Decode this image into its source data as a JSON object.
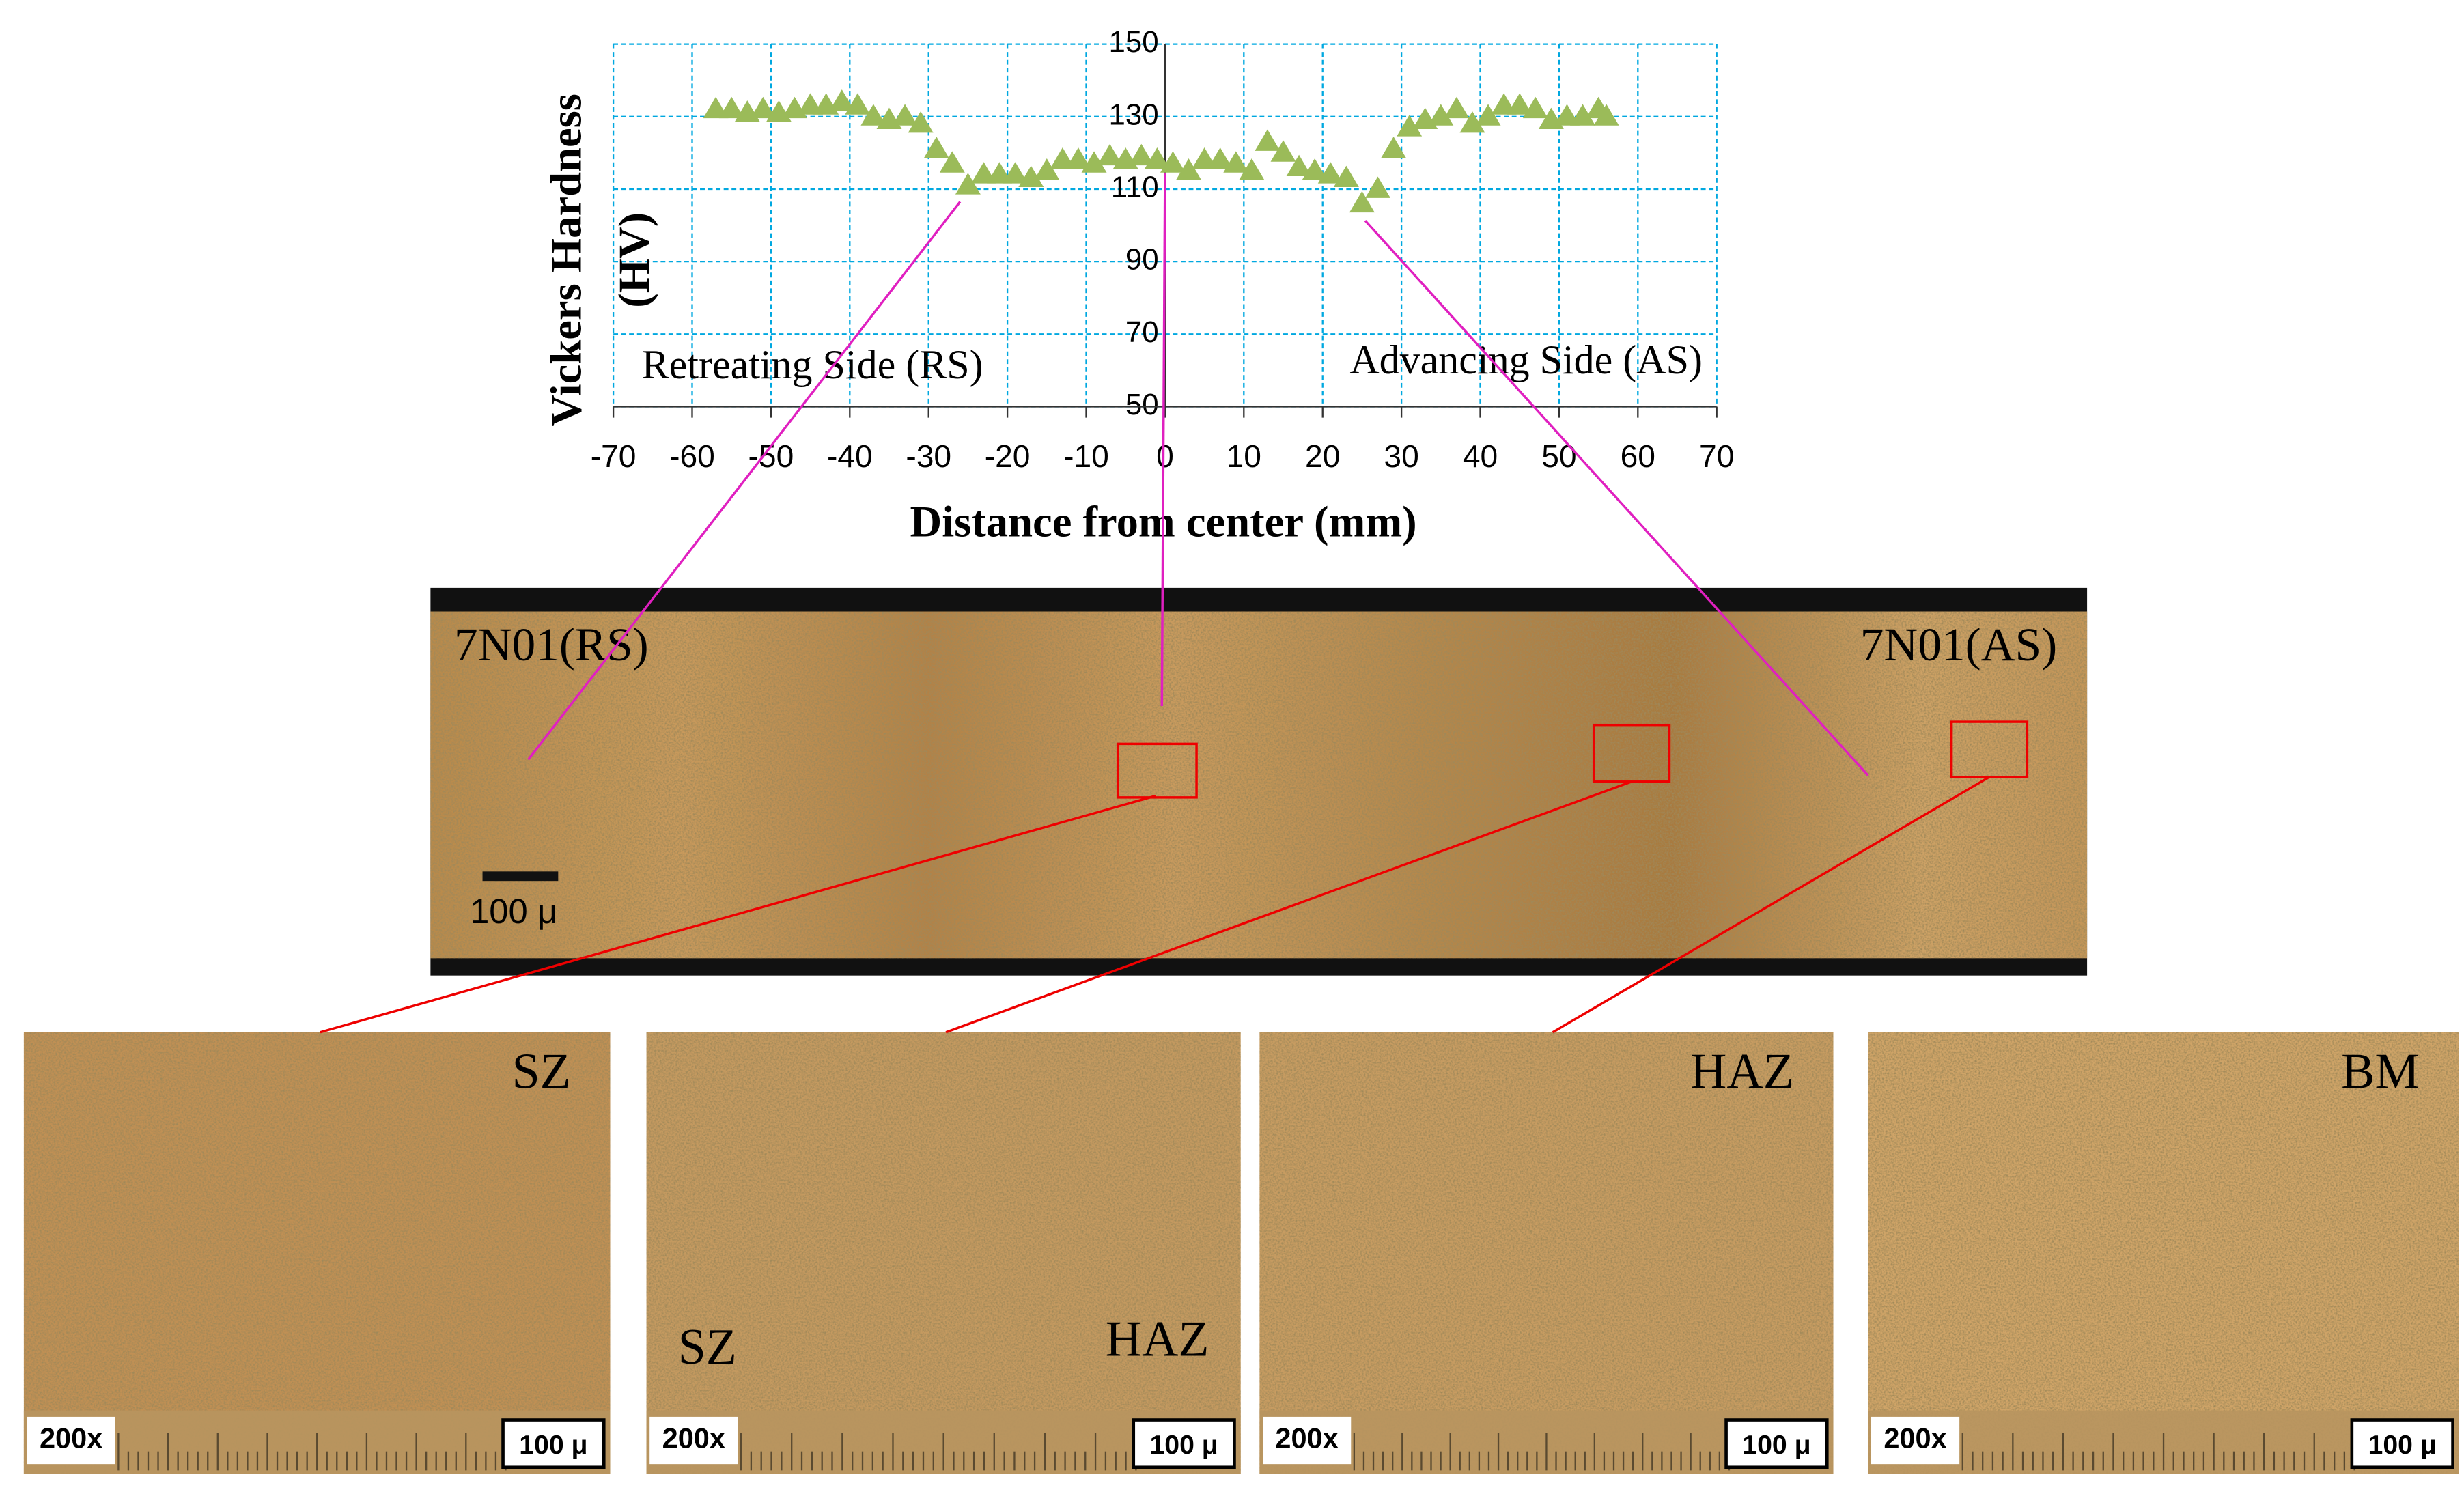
{
  "chart_data": {
    "type": "scatter",
    "y_label": [
      "Vickers Hardness",
      "(HV)"
    ],
    "x_label": "Distance from center (mm)",
    "annotations": [
      "Retreating Side (RS)",
      "Advancing Side (AS)"
    ],
    "x": [
      -57,
      -55,
      -53,
      -51,
      -49,
      -47,
      -45,
      -43,
      -41,
      -39,
      -37,
      -35,
      -33,
      -31,
      -29,
      -27,
      -25,
      -23,
      -21,
      -19,
      -17,
      -15,
      -13,
      -11,
      -9,
      -7,
      -5,
      -3,
      -1,
      1,
      3,
      5,
      7,
      9,
      11,
      13,
      15,
      17,
      19,
      21,
      23,
      25,
      27,
      29,
      31,
      33,
      35,
      37,
      39,
      41,
      43,
      45,
      47,
      49,
      51,
      53,
      55,
      56
    ],
    "values": [
      132,
      132,
      131,
      132,
      131,
      132,
      133,
      133,
      134,
      133,
      130,
      129,
      130,
      128,
      121,
      117,
      111,
      114,
      114,
      114,
      113,
      115,
      118,
      118,
      117,
      119,
      118,
      119,
      118,
      117,
      115,
      118,
      118,
      117,
      115,
      123,
      120,
      116,
      115,
      114,
      113,
      106,
      110,
      121,
      127,
      129,
      130,
      132,
      128,
      130,
      133,
      133,
      132,
      129,
      130,
      130,
      132,
      130
    ],
    "color": "#9bbb59",
    "marker": "triangle",
    "xlim": [
      -70,
      70
    ],
    "xticks": [
      -70,
      -60,
      -50,
      -40,
      -30,
      -20,
      -10,
      0,
      10,
      20,
      30,
      40,
      50,
      60,
      70
    ],
    "ylim": [
      50,
      150
    ],
    "yticks": [
      50,
      70,
      90,
      110,
      130,
      150
    ],
    "grid": true
  },
  "micrograph": {
    "labels": [
      "7N01(RS)",
      "7N01(AS)"
    ],
    "scale_bar": "100 μ"
  },
  "panels": [
    {
      "labels": [
        "SZ"
      ],
      "magnification": "200x",
      "scale": "100 μ"
    },
    {
      "labels": [
        "SZ",
        "HAZ"
      ],
      "magnification": "200x",
      "scale": "100 μ"
    },
    {
      "labels": [
        "HAZ"
      ],
      "magnification": "200x",
      "scale": "100 μ"
    },
    {
      "labels": [
        "BM"
      ],
      "magnification": "200x",
      "scale": "100 μ"
    }
  ]
}
